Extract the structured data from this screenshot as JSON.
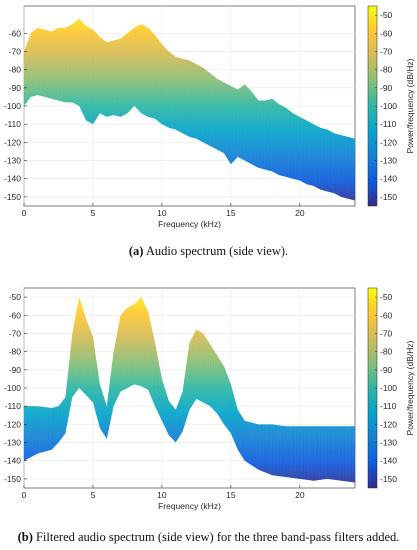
{
  "figure": {
    "panels": [
      {
        "tag": "(a)",
        "caption": "Audio spectrum (side view)."
      },
      {
        "tag": "(b)",
        "caption": "Filtered audio spectrum (side view) for the three band-pass filters added."
      }
    ]
  },
  "chart_data": [
    {
      "type": "area",
      "xlabel": "Frequency (kHz)",
      "ylabel": "",
      "xlim": [
        0,
        24
      ],
      "ylim": [
        -155,
        -45
      ],
      "x_ticks": [
        "0",
        "5",
        "10",
        "15",
        "20"
      ],
      "y_ticks": [
        "-60",
        "-70",
        "-80",
        "-90",
        "-100",
        "-110",
        "-120",
        "-130",
        "-140",
        "-150"
      ],
      "colorbar": {
        "label": "Power/frequency (dB/Hz)",
        "range": [
          -155,
          -45
        ],
        "ticks": [
          "-50",
          "-60",
          "-70",
          "-80",
          "-90",
          "-100",
          "-110",
          "-120",
          "-130",
          "-140",
          "-150"
        ]
      },
      "colormap": [
        "#352a87",
        "#0f5cdd",
        "#1481d6",
        "#06a4ca",
        "#2eb7a4",
        "#87bf77",
        "#d1bb59",
        "#fec832",
        "#f9fb0e"
      ],
      "series": [
        {
          "x": [
            0,
            0.5,
            1,
            1.5,
            2,
            2.5,
            3,
            3.5,
            4,
            4.5,
            5,
            5.5,
            6,
            6.5,
            7,
            7.5,
            8,
            8.5,
            9,
            9.5,
            10,
            10.5,
            11,
            11.5,
            12,
            12.5,
            13,
            13.5,
            14,
            14.5,
            15,
            15.5,
            16,
            16.5,
            17,
            17.5,
            18,
            18.5,
            19,
            19.5,
            20,
            20.5,
            21,
            21.5,
            22,
            22.5,
            23,
            23.5,
            24
          ],
          "top": [
            -70,
            -60,
            -57,
            -58,
            -59,
            -57,
            -57,
            -55,
            -52,
            -56,
            -58,
            -62,
            -65,
            -64,
            -63,
            -60,
            -57,
            -55,
            -57,
            -61,
            -66,
            -70,
            -73,
            -74,
            -75,
            -77,
            -79,
            -82,
            -85,
            -87,
            -89,
            -91,
            -88,
            -92,
            -97,
            -97,
            -96,
            -99,
            -101,
            -104,
            -106,
            -108,
            -110,
            -112,
            -113,
            -115,
            -116,
            -117,
            -118
          ],
          "bottom": [
            -100,
            -95,
            -94,
            -95,
            -96,
            -97,
            -98,
            -98,
            -100,
            -108,
            -110,
            -104,
            -106,
            -105,
            -106,
            -104,
            -100,
            -104,
            -106,
            -107,
            -110,
            -112,
            -113,
            -115,
            -117,
            -118,
            -120,
            -122,
            -124,
            -126,
            -132,
            -128,
            -130,
            -132,
            -134,
            -135,
            -136,
            -138,
            -139,
            -140,
            -141,
            -143,
            -144,
            -146,
            -147,
            -148,
            -150,
            -151,
            -152
          ]
        }
      ]
    },
    {
      "type": "area",
      "xlabel": "Frequency (kHz)",
      "ylabel": "",
      "xlim": [
        0,
        24
      ],
      "ylim": [
        -155,
        -45
      ],
      "x_ticks": [
        "0",
        "5",
        "10",
        "15",
        "20"
      ],
      "y_ticks": [
        "-50",
        "-60",
        "-70",
        "-80",
        "-90",
        "-100",
        "-110",
        "-120",
        "-130",
        "-140",
        "-150"
      ],
      "colorbar": {
        "label": "Power/frequency (dB/Hz)",
        "range": [
          -155,
          -45
        ],
        "ticks": [
          "-50",
          "-60",
          "-70",
          "-80",
          "-90",
          "-100",
          "-110",
          "-120",
          "-130",
          "-140",
          "-150"
        ]
      },
      "colormap": [
        "#352a87",
        "#0f5cdd",
        "#1481d6",
        "#06a4ca",
        "#2eb7a4",
        "#87bf77",
        "#d1bb59",
        "#fec832",
        "#f9fb0e"
      ],
      "series": [
        {
          "x": [
            0,
            1,
            2,
            2.5,
            3,
            3.5,
            4,
            4.5,
            5,
            5.5,
            6,
            6.5,
            7,
            7.5,
            8,
            8.5,
            9,
            9.5,
            10,
            10.5,
            11,
            11.5,
            12,
            12.5,
            13,
            13.5,
            14,
            14.5,
            15,
            15.5,
            16,
            17,
            18,
            19,
            20,
            21,
            22,
            23,
            24
          ],
          "top": [
            -110,
            -110,
            -111,
            -110,
            -105,
            -70,
            -50,
            -62,
            -72,
            -98,
            -110,
            -80,
            -60,
            -56,
            -54,
            -50,
            -58,
            -75,
            -95,
            -107,
            -112,
            -102,
            -75,
            -68,
            -70,
            -76,
            -82,
            -88,
            -98,
            -112,
            -118,
            -120,
            -120,
            -121,
            -121,
            -121,
            -121,
            -121,
            -121
          ],
          "bottom": [
            -140,
            -136,
            -134,
            -130,
            -125,
            -105,
            -100,
            -104,
            -108,
            -122,
            -128,
            -110,
            -102,
            -100,
            -98,
            -99,
            -101,
            -110,
            -118,
            -126,
            -130,
            -124,
            -112,
            -106,
            -108,
            -110,
            -114,
            -120,
            -125,
            -134,
            -140,
            -145,
            -148,
            -149,
            -150,
            -151,
            -150,
            -151,
            -152
          ]
        }
      ]
    }
  ]
}
